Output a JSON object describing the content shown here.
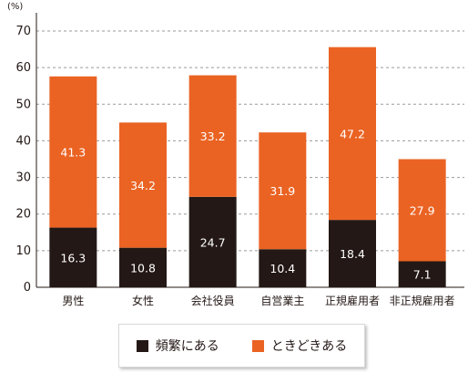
{
  "chart_data": {
    "type": "bar",
    "stacked": true,
    "unit_label": "(%)",
    "categories": [
      "男性",
      "女性",
      "会社役員",
      "自営業主",
      "正規雇用者",
      "非正規雇用者"
    ],
    "series": [
      {
        "name": "頻繁にある",
        "color": "#231815",
        "values": [
          16.3,
          10.8,
          24.7,
          10.4,
          18.4,
          7.1
        ],
        "labels": [
          "16.3",
          "10.8",
          "24.7",
          "10.4",
          "18.4",
          "7.1"
        ]
      },
      {
        "name": "ときどきある",
        "color": "#ea6323",
        "values": [
          41.3,
          34.2,
          33.2,
          31.9,
          47.2,
          27.9
        ],
        "labels": [
          "41.3",
          "34.2",
          "33.2",
          "31.9",
          "47.2",
          "27.9"
        ]
      }
    ],
    "yticks": [
      "0",
      "10",
      "20",
      "30",
      "40",
      "50",
      "60",
      "70"
    ],
    "ylim": [
      0,
      70
    ],
    "grid": "dashed-horizontal",
    "legend_position": "bottom"
  }
}
